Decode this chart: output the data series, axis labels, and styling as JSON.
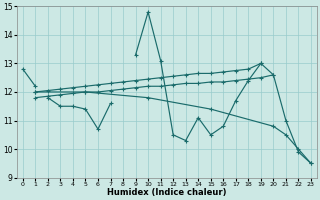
{
  "xlabel": "Humidex (Indice chaleur)",
  "ylabel": "",
  "bg_color": "#cce8e4",
  "grid_color": "#99cccc",
  "line_color": "#1a6b6b",
  "xlim_min": -0.5,
  "xlim_max": 23.5,
  "ylim": [
    9,
    15
  ],
  "yticks": [
    9,
    10,
    11,
    12,
    13,
    14,
    15
  ],
  "xticks": [
    0,
    1,
    2,
    3,
    4,
    5,
    6,
    7,
    8,
    9,
    10,
    11,
    12,
    13,
    14,
    15,
    16,
    17,
    18,
    19,
    20,
    21,
    22,
    23
  ],
  "series": [
    {
      "x": [
        0,
        1
      ],
      "y": [
        12.8,
        12.2
      ]
    },
    {
      "x": [
        2,
        3,
        4,
        5,
        6,
        7
      ],
      "y": [
        11.8,
        11.5,
        11.5,
        11.4,
        10.7,
        11.6
      ]
    },
    {
      "x": [
        1,
        2,
        3,
        4,
        5,
        6,
        7,
        8,
        9,
        10,
        11,
        12,
        13,
        14,
        15,
        16,
        17,
        18,
        19
      ],
      "y": [
        12.0,
        12.05,
        12.1,
        12.15,
        12.2,
        12.25,
        12.3,
        12.35,
        12.4,
        12.45,
        12.5,
        12.55,
        12.6,
        12.65,
        12.65,
        12.7,
        12.75,
        12.8,
        13.0
      ]
    },
    {
      "x": [
        1,
        2,
        3,
        4,
        5,
        6,
        7,
        8,
        9,
        10,
        11,
        12,
        13,
        14,
        15,
        16,
        17,
        18,
        19,
        20
      ],
      "y": [
        11.8,
        11.85,
        11.9,
        11.95,
        12.0,
        12.0,
        12.05,
        12.1,
        12.15,
        12.2,
        12.2,
        12.25,
        12.3,
        12.3,
        12.35,
        12.35,
        12.4,
        12.45,
        12.5,
        12.6
      ]
    },
    {
      "x": [
        9,
        10,
        11,
        12,
        13,
        14,
        15,
        16,
        17,
        18,
        19,
        20,
        21,
        22,
        23
      ],
      "y": [
        13.3,
        14.8,
        13.1,
        10.5,
        10.3,
        11.1,
        10.5,
        10.8,
        11.7,
        12.4,
        13.0,
        12.6,
        11.0,
        9.9,
        9.5
      ]
    },
    {
      "x": [
        1,
        5,
        10,
        15,
        20,
        21,
        22,
        23
      ],
      "y": [
        12.0,
        12.0,
        11.8,
        11.4,
        10.8,
        10.5,
        10.0,
        9.5
      ]
    }
  ]
}
